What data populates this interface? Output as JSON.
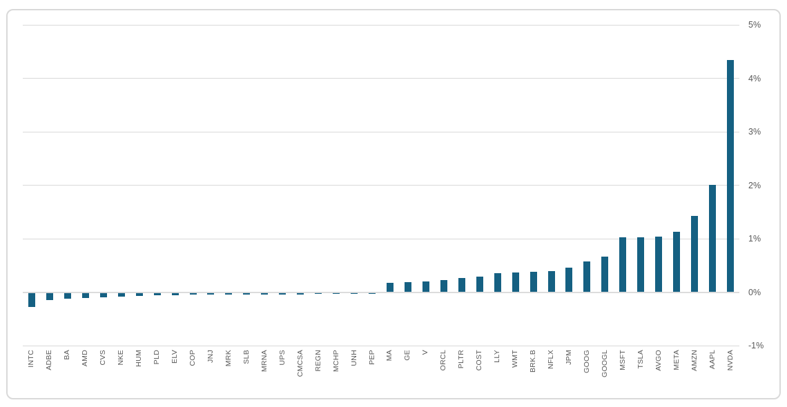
{
  "chart_data": {
    "type": "bar",
    "title": "",
    "xlabel": "",
    "ylabel": "",
    "categories": [
      "INTC",
      "ADBE",
      "BA",
      "AMD",
      "CVS",
      "NKE",
      "HUM",
      "PLD",
      "ELV",
      "COP",
      "JNJ",
      "MRK",
      "SLB",
      "MRNA",
      "UPS",
      "CMCSA",
      "REGN",
      "MCHP",
      "UNH",
      "PEP",
      "MA",
      "GE",
      "V",
      "ORCL",
      "PLTR",
      "COST",
      "LLY",
      "WMT",
      "BRK.B",
      "NFLX",
      "JPM",
      "GOOG",
      "GOOGL",
      "MSFT",
      "TSLA",
      "AVGO",
      "META",
      "AMZN",
      "AAPL",
      "NVDA"
    ],
    "values": [
      -0.28,
      -0.15,
      -0.12,
      -0.11,
      -0.1,
      -0.08,
      -0.07,
      -0.06,
      -0.06,
      -0.05,
      -0.05,
      -0.05,
      -0.04,
      -0.04,
      -0.04,
      -0.04,
      -0.03,
      -0.03,
      -0.03,
      -0.03,
      0.18,
      0.19,
      0.2,
      0.23,
      0.26,
      0.29,
      0.35,
      0.37,
      0.38,
      0.39,
      0.46,
      0.58,
      0.66,
      1.02,
      1.03,
      1.04,
      1.13,
      1.42,
      2.01,
      4.34
    ],
    "value_unit": "percent",
    "ylim": [
      -1,
      5
    ],
    "y_ticks": [
      {
        "value": 5,
        "label": "5%"
      },
      {
        "value": 4,
        "label": "4%"
      },
      {
        "value": 3,
        "label": "3%"
      },
      {
        "value": 2,
        "label": "2%"
      },
      {
        "value": 1,
        "label": "1%"
      },
      {
        "value": 0,
        "label": "0%"
      },
      {
        "value": -1,
        "label": "-1%"
      }
    ],
    "grid": true,
    "legend": false,
    "y_axis_position": "right",
    "x_label_rotation": "vertical-bottom-to-top",
    "bar_color": "#156082"
  },
  "colors": {
    "bar": "#156082",
    "gridline": "#d9d9d9",
    "frame_border": "#d9d9d9",
    "tick_text": "#595959",
    "background": "#ffffff"
  }
}
